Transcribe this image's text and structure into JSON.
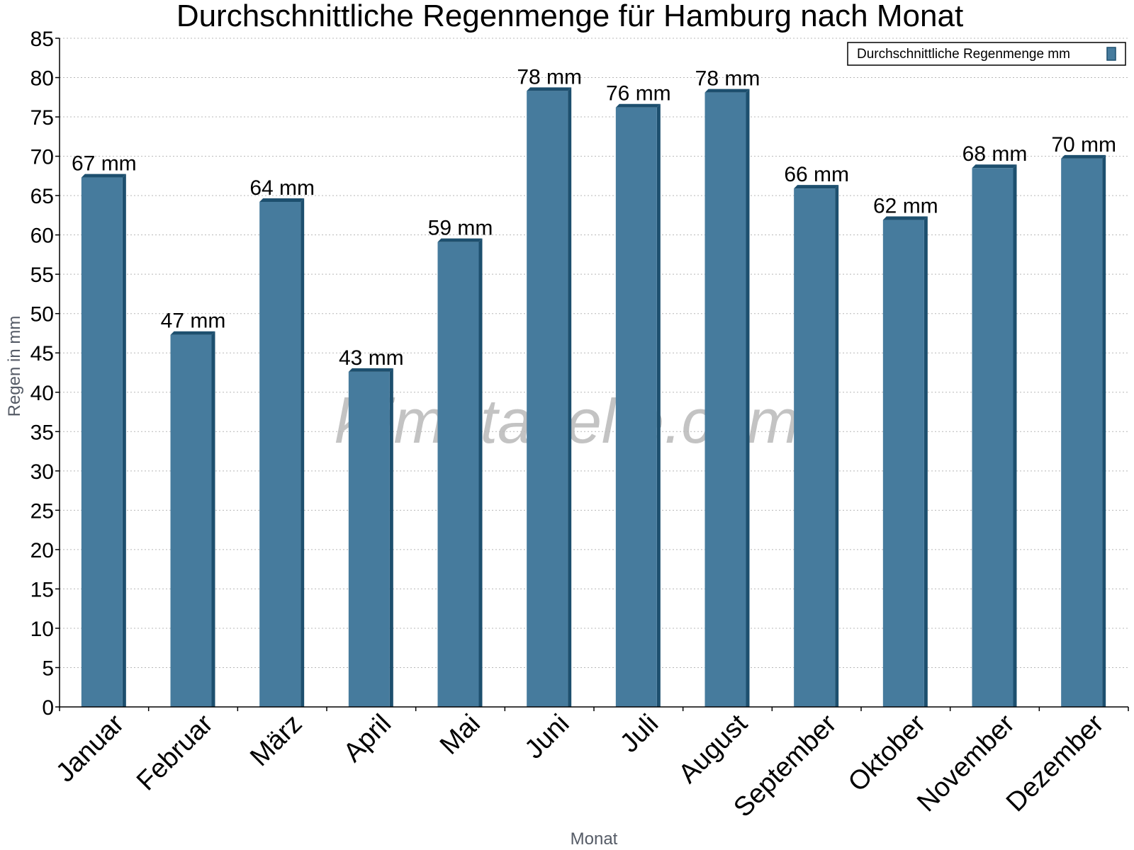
{
  "chart_data": {
    "type": "bar",
    "title": "Durchschnittliche Regenmenge für Hamburg nach Monat",
    "xlabel": "Monat",
    "ylabel": "Regen in mm",
    "ylim": [
      0,
      85
    ],
    "yticks": [
      0,
      5,
      10,
      15,
      20,
      25,
      30,
      35,
      40,
      45,
      50,
      55,
      60,
      65,
      70,
      75,
      80,
      85
    ],
    "grid": true,
    "legend_position": "top-right",
    "categories": [
      "Januar",
      "Februar",
      "März",
      "April",
      "Mai",
      "Juni",
      "Juli",
      "August",
      "September",
      "Oktober",
      "November",
      "Dezember"
    ],
    "series": [
      {
        "name": "Durchschnittliche Regenmenge mm",
        "values": [
          67.3,
          47.3,
          64.2,
          42.6,
          59.1,
          78.3,
          76.2,
          78.1,
          65.9,
          61.9,
          68.5,
          69.7
        ],
        "labels": [
          "67 mm",
          "47 mm",
          "64 mm",
          "43 mm",
          "59 mm",
          "78 mm",
          "76 mm",
          "78 mm",
          "66 mm",
          "62 mm",
          "68 mm",
          "70 mm"
        ],
        "color": "#467b9d",
        "edge_color": "#1d4f6e"
      }
    ],
    "watermark": "klimatabelle.com"
  }
}
